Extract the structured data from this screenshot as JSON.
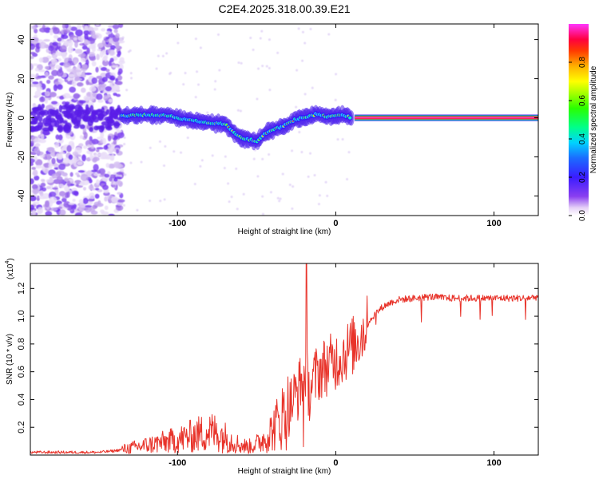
{
  "title": "C2E4.2025.318.00.39.E21",
  "chart_data": [
    {
      "type": "heatmap",
      "title": "C2E4.2025.318.00.39.E21",
      "xlabel": "Height of straight line (km)",
      "ylabel": "Frequency (Hz)",
      "xlim": [
        -193,
        128
      ],
      "ylim": [
        -50,
        48
      ],
      "xticks": [
        -100,
        0,
        100
      ],
      "yticks": [
        -40,
        -20,
        0,
        20,
        40
      ],
      "ridge": {
        "x": [
          -135,
          -120,
          -105,
          -95,
          -85,
          -75,
          -70,
          -65,
          -60,
          -55,
          -50,
          -45,
          -40,
          -35,
          -30,
          -26,
          -22,
          -18,
          -15,
          -12,
          -8,
          -4,
          0,
          5,
          10,
          128
        ],
        "y": [
          1,
          1.5,
          1,
          -1,
          -2,
          -3,
          -3,
          -7,
          -10,
          -11,
          -12,
          -8,
          -6,
          -5,
          -3,
          -1,
          0,
          0.5,
          1,
          2,
          1,
          0.5,
          1,
          1.5,
          0,
          0
        ]
      },
      "colorbar": {
        "label": "Normalized spectral amplitude",
        "ticks": [
          0.0,
          0.2,
          0.4,
          0.6,
          0.8
        ],
        "range": [
          0,
          1
        ]
      }
    },
    {
      "type": "line",
      "xlabel": "Height of straight line (km)",
      "ylabel": "SNR (10 * v/v)",
      "scale_label": "(x10",
      "scale_exp": "4",
      "xlim": [
        -193,
        128
      ],
      "ylim": [
        0,
        1.38
      ],
      "xticks": [
        -100,
        0,
        100
      ],
      "yticks": [
        0.2,
        0.4,
        0.6,
        0.8,
        1.0,
        1.2
      ],
      "color": "#e8332a",
      "series": [
        {
          "name": "SNR",
          "x": [
            -193,
            -170,
            -150,
            -140,
            -130,
            -120,
            -110,
            -100,
            -90,
            -80,
            -75,
            -70,
            -65,
            -60,
            -55,
            -50,
            -45,
            -40,
            -35,
            -30,
            -27,
            -24,
            -21,
            -19,
            -17,
            -15,
            -12,
            -9,
            -6,
            -3,
            0,
            4,
            8,
            12,
            16,
            20,
            25,
            30,
            35,
            40,
            50,
            60,
            70,
            80,
            90,
            100,
            110,
            120,
            128
          ],
          "y": [
            0.02,
            0.02,
            0.02,
            0.03,
            0.05,
            0.07,
            0.09,
            0.11,
            0.14,
            0.17,
            0.16,
            0.13,
            0.1,
            0.07,
            0.06,
            0.08,
            0.12,
            0.18,
            0.26,
            0.33,
            0.4,
            0.46,
            0.55,
            0.62,
            0.45,
            0.52,
            0.58,
            0.62,
            0.64,
            0.66,
            0.68,
            0.72,
            0.76,
            0.8,
            0.86,
            0.94,
            1.02,
            1.07,
            1.1,
            1.12,
            1.13,
            1.14,
            1.13,
            1.13,
            1.13,
            1.13,
            1.13,
            1.13,
            1.14
          ]
        }
      ]
    }
  ]
}
